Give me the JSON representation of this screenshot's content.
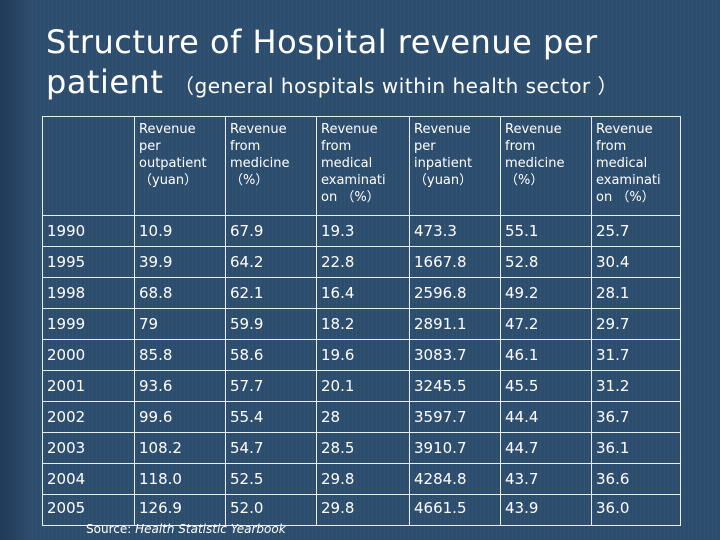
{
  "slide": {
    "title_main": "Structure of Hospital revenue per patient",
    "title_sub": "（general hospitals within health sector ）"
  },
  "table": {
    "headers": [
      "",
      [
        "Revenue",
        "per",
        "outpatient",
        "（yuan）"
      ],
      [
        "Revenue",
        "from",
        "medicine",
        "（%）"
      ],
      [
        "Revenue",
        "from",
        "medical",
        "examinati",
        "on （%）"
      ],
      [
        "Revenue",
        "per",
        "inpatient",
        "（yuan）"
      ],
      [
        "Revenue",
        "from",
        "medicine",
        "（%）"
      ],
      [
        "Revenue",
        "from",
        "medical",
        "examinati",
        "on （%）"
      ]
    ],
    "rows": [
      [
        "1990",
        "10.9",
        "67.9",
        "19.3",
        "473.3",
        "55.1",
        "25.7"
      ],
      [
        "1995",
        "39.9",
        "64.2",
        "22.8",
        "1667.8",
        "52.8",
        "30.4"
      ],
      [
        "1998",
        "68.8",
        "62.1",
        "16.4",
        "2596.8",
        "49.2",
        "28.1"
      ],
      [
        "1999",
        "79",
        "59.9",
        "18.2",
        "2891.1",
        "47.2",
        "29.7"
      ],
      [
        "2000",
        "85.8",
        "58.6",
        "19.6",
        "3083.7",
        "46.1",
        "31.7"
      ],
      [
        "2001",
        "93.6",
        "57.7",
        "20.1",
        "3245.5",
        "45.5",
        "31.2"
      ],
      [
        "2002",
        "99.6",
        "55.4",
        "28",
        "3597.7",
        "44.4",
        "36.7"
      ],
      [
        "2003",
        "108.2",
        "54.7",
        "28.5",
        "3910.7",
        "44.7",
        "36.1"
      ],
      [
        "2004",
        "118.0",
        "52.5",
        "29.8",
        "4284.8",
        "43.7",
        "36.6"
      ],
      [
        "2005",
        "126.9",
        "52.0",
        "29.8",
        "4661.5",
        "43.9",
        "36.0"
      ]
    ]
  },
  "source": {
    "prefix": "Source: ",
    "name": "Health Statistic Yearbook"
  },
  "colors": {
    "background": "#2d4d6e",
    "text": "#ffffff",
    "grid": "#e8eef4"
  }
}
